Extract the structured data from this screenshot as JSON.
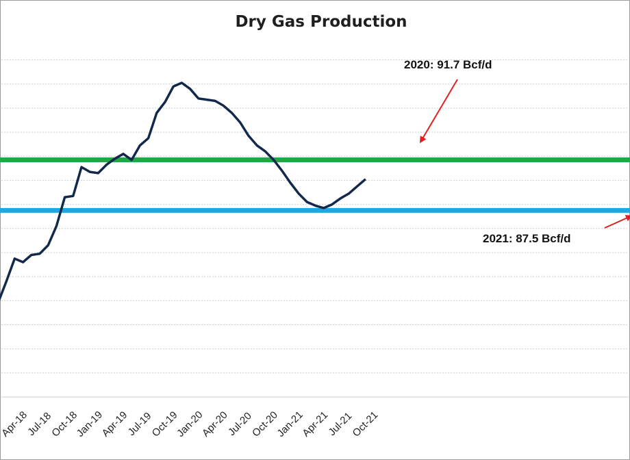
{
  "chart_data": {
    "type": "line",
    "title": "Dry Gas Production",
    "categories": [
      "Apr-18",
      "Jul-18",
      "Oct-18",
      "Jan-19",
      "Apr-19",
      "Jul-19",
      "Oct-19",
      "Jan-20",
      "Apr-20",
      "Jul-20",
      "Oct-20",
      "Jan-21",
      "Apr-21",
      "Jul-21",
      "Oct-21"
    ],
    "x": [
      "Feb-18",
      "Mar-18",
      "Apr-18",
      "May-18",
      "Jun-18",
      "Jul-18",
      "Aug-18",
      "Sep-18",
      "Oct-18",
      "Nov-18",
      "Dec-18",
      "Jan-19",
      "Feb-19",
      "Mar-19",
      "Apr-19",
      "May-19",
      "Jun-19",
      "Jul-19",
      "Aug-19",
      "Sep-19",
      "Oct-19",
      "Nov-19",
      "Dec-19",
      "Jan-20",
      "Feb-20",
      "Mar-20",
      "Apr-20",
      "May-20",
      "Jun-20",
      "Jul-20",
      "Aug-20",
      "Sep-20",
      "Oct-20",
      "Nov-20",
      "Dec-20",
      "Jan-21",
      "Feb-21",
      "Mar-21",
      "Apr-21",
      "May-21",
      "Jun-21",
      "Jul-21",
      "Aug-21",
      "Sep-21",
      "Oct-21"
    ],
    "series": [
      {
        "values": [
          79.8,
          81.6,
          83.5,
          83.2,
          83.8,
          83.9,
          84.6,
          86.2,
          88.6,
          88.7,
          91.1,
          90.7,
          90.6,
          91.3,
          91.8,
          92.2,
          91.7,
          92.9,
          93.5,
          95.6,
          96.5,
          97.8,
          98.1,
          97.6,
          96.8,
          96.7,
          96.6,
          96.2,
          95.6,
          94.8,
          93.7,
          92.9,
          92.4,
          91.7,
          90.8,
          89.8,
          88.9,
          88.2,
          87.9,
          87.7,
          88.0,
          88.5,
          88.9,
          89.5,
          90.1
        ]
      }
    ],
    "ylim": [
      72,
      101
    ],
    "reference_lines": [
      {
        "value": 91.7,
        "color": "#22a744",
        "label": "2020: 91.7 Bcf/d"
      },
      {
        "value": 87.5,
        "color": "#1ea7e1",
        "label": "2021: 87.5 Bcf/d"
      }
    ],
    "line_color": "#13294b",
    "grid": true,
    "legend": "none"
  }
}
